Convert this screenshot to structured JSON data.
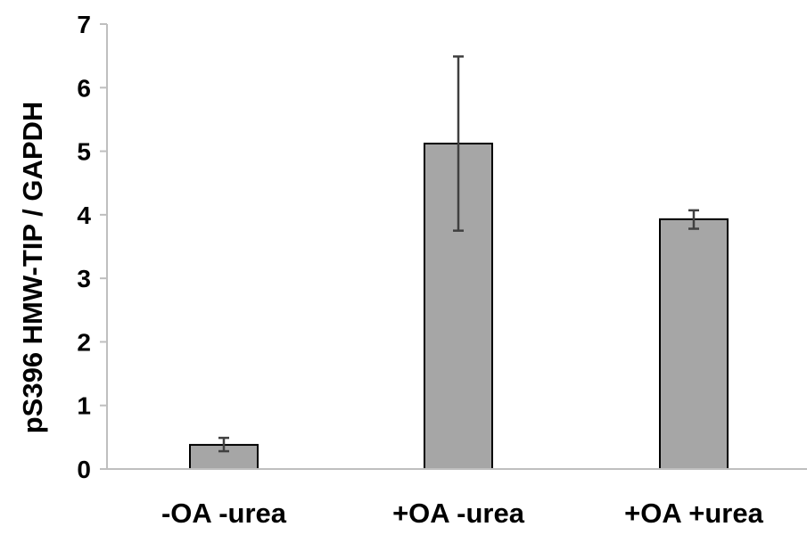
{
  "chart_data": {
    "type": "bar",
    "title": "",
    "xlabel": "",
    "ylabel": "pS396 HMW-TIP / GAPDH",
    "categories": [
      "-OA -urea",
      "+OA -urea",
      "+OA +urea"
    ],
    "values": [
      0.38,
      5.12,
      3.93
    ],
    "error_low": [
      0.28,
      3.75,
      3.78
    ],
    "error_high": [
      0.49,
      6.49,
      4.07
    ],
    "ylim": [
      0,
      7
    ],
    "yticks": [
      "0",
      "1",
      "2",
      "3",
      "4",
      "5",
      "6",
      "7"
    ],
    "grid": false,
    "legend": "none",
    "colors": {
      "bar_fill": "#a6a6a6",
      "bar_stroke": "#000000",
      "error_bar": "#404040",
      "axis": "#bfbfbf"
    }
  }
}
